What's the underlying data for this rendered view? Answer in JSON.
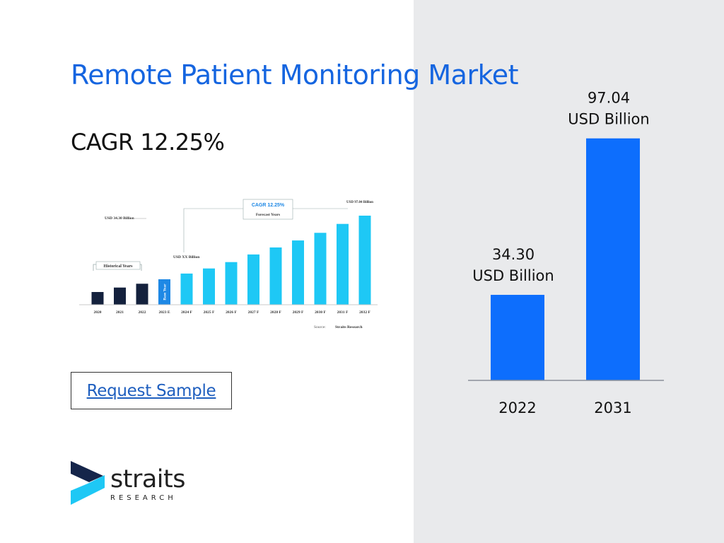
{
  "page": {
    "title": "Remote Patient Monitoring Market",
    "cagr_text": "CAGR 12.25%",
    "request_label": "Request Sample"
  },
  "logo": {
    "word": "straits",
    "sub": "RESEARCH"
  },
  "colors": {
    "title": "#1565e0",
    "main_bar": "#0d6efd",
    "thumb_historical": "#14213d",
    "thumb_base": "#1e88e5",
    "thumb_forecast": "#1ec8f5",
    "panel": "#e9eaec"
  },
  "chart_data": [
    {
      "type": "bar",
      "categories": [
        "2022",
        "2031"
      ],
      "values": [
        34.3,
        97.04
      ],
      "data_labels": [
        [
          "34.30",
          "USD Billion"
        ],
        [
          "97.04",
          "USD Billion"
        ]
      ],
      "ylim": [
        0,
        110
      ],
      "grid": false
    },
    {
      "type": "bar",
      "categories": [
        "2020",
        "2021",
        "2022",
        "2023 E",
        "2024 F",
        "2025 F",
        "2026 F",
        "2027 F",
        "2028 F",
        "2029 F",
        "2030 F",
        "2031 F",
        "2032 F"
      ],
      "values": [
        20,
        27,
        33,
        40,
        49,
        57,
        67,
        79,
        90,
        101,
        113,
        127,
        140
      ],
      "ylim": [
        0,
        150
      ],
      "segments": [
        "historical",
        "historical",
        "historical",
        "base",
        "forecast",
        "forecast",
        "forecast",
        "forecast",
        "forecast",
        "forecast",
        "forecast",
        "forecast",
        "forecast"
      ],
      "annotations": {
        "start_value": "USD 34.30 Billion",
        "end_value": "USD 97.04 Billion",
        "mid_value": "USD XX Billion",
        "cagr": "CAGR 12.25%",
        "forecast": "Forecast Years",
        "historical": "Historical Years",
        "base_year": "Base Year",
        "source_label": "Source:",
        "source_name": "Straits Research"
      }
    }
  ]
}
